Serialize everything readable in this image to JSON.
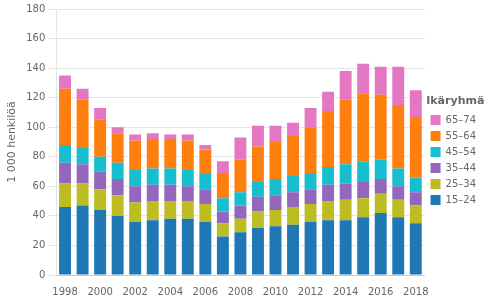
{
  "chart_data": {
    "type": "bar",
    "stacked": true,
    "y_label": "1 000 henkilöä",
    "legend_title": "Ikäryhmä",
    "legend": "right",
    "grid": true,
    "categories": [
      "1998",
      null,
      "2000",
      null,
      "2002",
      null,
      "2004",
      null,
      "2006",
      null,
      "2008",
      null,
      "2010",
      null,
      "2012",
      null,
      "2014",
      null,
      "2016",
      null,
      "2018"
    ],
    "ylim": [
      0,
      180
    ],
    "yticks": [
      0,
      20,
      40,
      60,
      80,
      100,
      120,
      140,
      160,
      180
    ],
    "series": [
      {
        "name": "15–24",
        "color": "#1f77b4",
        "values": [
          46,
          47,
          44,
          40,
          36,
          37,
          38,
          38,
          36,
          26,
          29,
          32,
          33,
          34,
          36,
          37,
          37,
          39,
          42,
          39,
          35
        ]
      },
      {
        "name": "25–34",
        "color": "#bcbd22",
        "values": [
          16,
          15,
          14,
          14,
          13,
          13,
          12,
          12,
          12,
          9,
          9,
          11,
          11,
          12,
          12,
          13,
          14,
          13,
          13,
          12,
          12
        ]
      },
      {
        "name": "35–44",
        "color": "#9467bd",
        "values": [
          14,
          13,
          12,
          11,
          11,
          11,
          11,
          10,
          10,
          8,
          9,
          10,
          10,
          10,
          10,
          11,
          11,
          11,
          10,
          9,
          9
        ]
      },
      {
        "name": "45–54",
        "color": "#17becf",
        "values": [
          12,
          11,
          10,
          11,
          11,
          11,
          11,
          11,
          11,
          9,
          9,
          10,
          11,
          11,
          11,
          12,
          13,
          14,
          13,
          12,
          10
        ]
      },
      {
        "name": "55–64",
        "color": "#ff7f0e",
        "values": [
          38,
          33,
          25,
          20,
          20,
          20,
          20,
          20,
          16,
          17,
          22,
          24,
          25,
          27,
          31,
          38,
          44,
          46,
          44,
          43,
          41
        ]
      },
      {
        "name": "65–74",
        "color": "#e377c2",
        "values": [
          9,
          7,
          8,
          4,
          4,
          4,
          3,
          4,
          3,
          8,
          15,
          14,
          11,
          9,
          13,
          13,
          19,
          20,
          19,
          26,
          18
        ]
      }
    ]
  }
}
